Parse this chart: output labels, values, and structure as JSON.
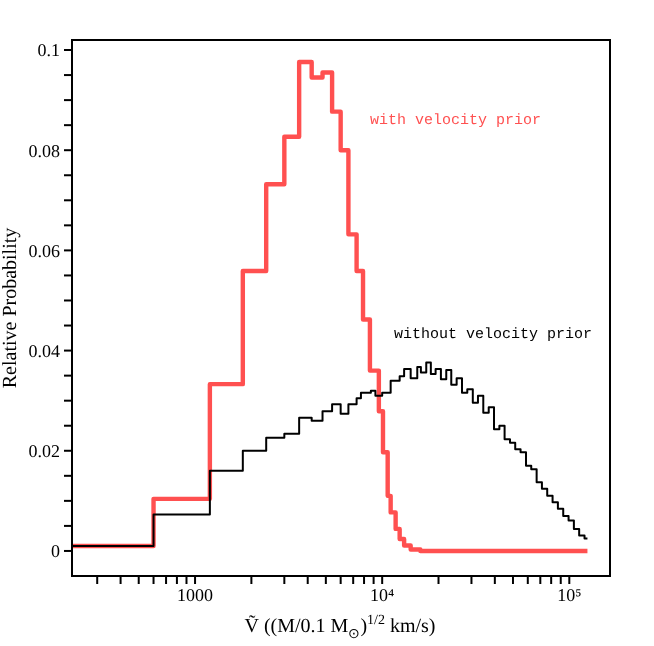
{
  "chart_data": {
    "type": "step",
    "xlabel": "Ṽ ((M/0.1 M$_{⊙}$)$^{1/2}$ km/s)",
    "ylabel": "Relative Probability",
    "log": "x",
    "xlim": [
      220,
      165000
    ],
    "xticks": [
      {
        "value": 300,
        "label": null
      },
      {
        "value": 400,
        "label": null
      },
      {
        "value": 500,
        "label": null
      },
      {
        "value": 600,
        "label": null
      },
      {
        "value": 700,
        "label": null
      },
      {
        "value": 800,
        "label": null
      },
      {
        "value": 900,
        "label": null
      },
      1000,
      {
        "value": 2000,
        "label": null
      },
      {
        "value": 3000,
        "label": null
      },
      {
        "value": 4000,
        "label": null
      },
      {
        "value": 5000,
        "label": null
      },
      {
        "value": 6000,
        "label": null
      },
      {
        "value": 7000,
        "label": null
      },
      {
        "value": 8000,
        "label": null
      },
      {
        "value": 9000,
        "label": null
      },
      {
        "value": 10000,
        "label": "10⁴"
      },
      {
        "value": 20000,
        "label": null
      },
      {
        "value": 30000,
        "label": null
      },
      {
        "value": 40000,
        "label": null
      },
      {
        "value": 50000,
        "label": null
      },
      {
        "value": 60000,
        "label": null
      },
      {
        "value": 70000,
        "label": null
      },
      {
        "value": 80000,
        "label": null
      },
      {
        "value": 90000,
        "label": null
      },
      {
        "value": 100000,
        "label": "10⁵"
      }
    ],
    "ylim": [
      -0.005,
      0.102
    ],
    "yticks": [
      0,
      {
        "value": 0.005,
        "label": null
      },
      {
        "value": 0.01,
        "label": null
      },
      {
        "value": 0.015,
        "label": null
      },
      0.02,
      {
        "value": 0.025,
        "label": null
      },
      {
        "value": 0.03,
        "label": null
      },
      {
        "value": 0.035,
        "label": null
      },
      0.04,
      {
        "value": 0.045,
        "label": null
      },
      {
        "value": 0.05,
        "label": null
      },
      {
        "value": 0.055,
        "label": null
      },
      0.06,
      {
        "value": 0.065,
        "label": null
      },
      {
        "value": 0.07,
        "label": null
      },
      {
        "value": 0.075,
        "label": null
      },
      0.08,
      {
        "value": 0.085,
        "label": null
      },
      {
        "value": 0.09,
        "label": null
      },
      {
        "value": 0.095,
        "label": null
      },
      0.1
    ],
    "marker": "none",
    "series": [
      {
        "name": "with velocity prior",
        "color": "#ff5050",
        "x": [
          220,
          600,
          1200,
          1800,
          2400,
          3000,
          3600,
          4200,
          4800,
          5400,
          6000,
          6600,
          7300,
          7900,
          8600,
          9600,
          10100,
          10700,
          11100,
          11800,
          12400,
          13100,
          14200,
          16000,
          125000
        ],
        "values": [
          0.001,
          0.0104,
          0.0333,
          0.0559,
          0.0732,
          0.0827,
          0.0976,
          0.0945,
          0.0955,
          0.0877,
          0.08,
          0.0632,
          0.0559,
          0.0462,
          0.036,
          0.0279,
          0.0197,
          0.011,
          0.0077,
          0.0044,
          0.0024,
          0.0011,
          0.0003,
          0,
          0
        ]
      },
      {
        "name": "without velocity prior",
        "color": "#000000",
        "x": [
          220,
          600,
          1200,
          1800,
          2400,
          3000,
          3600,
          4200,
          4800,
          5400,
          6000,
          6600,
          7300,
          7700,
          8700,
          9200,
          10000,
          11100,
          12400,
          13100,
          14200,
          15400,
          16100,
          17200,
          18200,
          19300,
          20600,
          22000,
          23400,
          25000,
          26700,
          28500,
          30500,
          32500,
          34700,
          37100,
          39600,
          42300,
          45100,
          48200,
          51400,
          54900,
          58700,
          62600,
          66900,
          71400,
          76200,
          81400,
          86900,
          92800,
          99100,
          105800,
          112900,
          120600,
          125000
        ],
        "values": [
          0.001,
          0.0073,
          0.016,
          0.02,
          0.0226,
          0.0234,
          0.0266,
          0.026,
          0.0279,
          0.0293,
          0.0274,
          0.0293,
          0.0305,
          0.0316,
          0.032,
          0.031,
          0.0316,
          0.034,
          0.0349,
          0.0363,
          0.0345,
          0.0367,
          0.0356,
          0.0376,
          0.0353,
          0.0363,
          0.0343,
          0.0361,
          0.0332,
          0.0345,
          0.0316,
          0.0323,
          0.0296,
          0.031,
          0.0276,
          0.0287,
          0.0243,
          0.025,
          0.0223,
          0.0216,
          0.0203,
          0.0197,
          0.017,
          0.0163,
          0.0137,
          0.0124,
          0.011,
          0.0097,
          0.0084,
          0.007,
          0.0061,
          0.0044,
          0.0031,
          0.0025,
          0.0025
        ]
      }
    ]
  }
}
